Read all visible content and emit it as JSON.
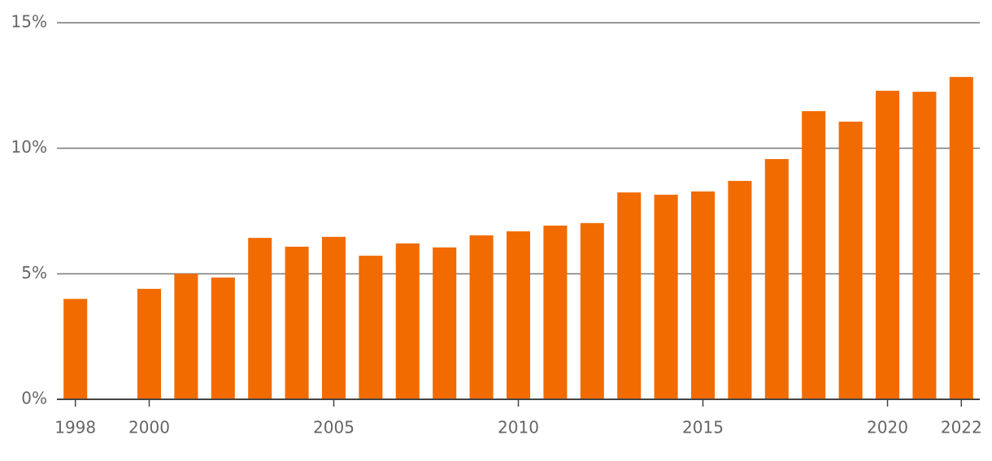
{
  "chart_data": {
    "type": "bar",
    "x": [
      1998,
      1999,
      2000,
      2001,
      2002,
      2003,
      2004,
      2005,
      2006,
      2007,
      2008,
      2009,
      2010,
      2011,
      2012,
      2013,
      2014,
      2015,
      2016,
      2017,
      2018,
      2019,
      2020,
      2021,
      2022
    ],
    "values": [
      4.0,
      null,
      4.4,
      5.0,
      4.85,
      6.43,
      6.08,
      6.47,
      5.72,
      6.21,
      6.05,
      6.53,
      6.69,
      6.92,
      7.02,
      8.24,
      8.15,
      8.28,
      8.7,
      9.57,
      11.48,
      11.06,
      12.29,
      12.25,
      12.84
    ],
    "color": "#f26b00",
    "xlim": [
      1997.5,
      2022.5
    ],
    "xticks": [
      1998,
      2000,
      2005,
      2010,
      2015,
      2020,
      2022
    ],
    "ylim": [
      0,
      15
    ],
    "yticks": [
      {
        "value": 0,
        "label": "0%"
      },
      {
        "value": 5,
        "label": "5%"
      },
      {
        "value": 10,
        "label": "10%"
      },
      {
        "value": 15,
        "label": "15%"
      }
    ],
    "grid": true
  }
}
